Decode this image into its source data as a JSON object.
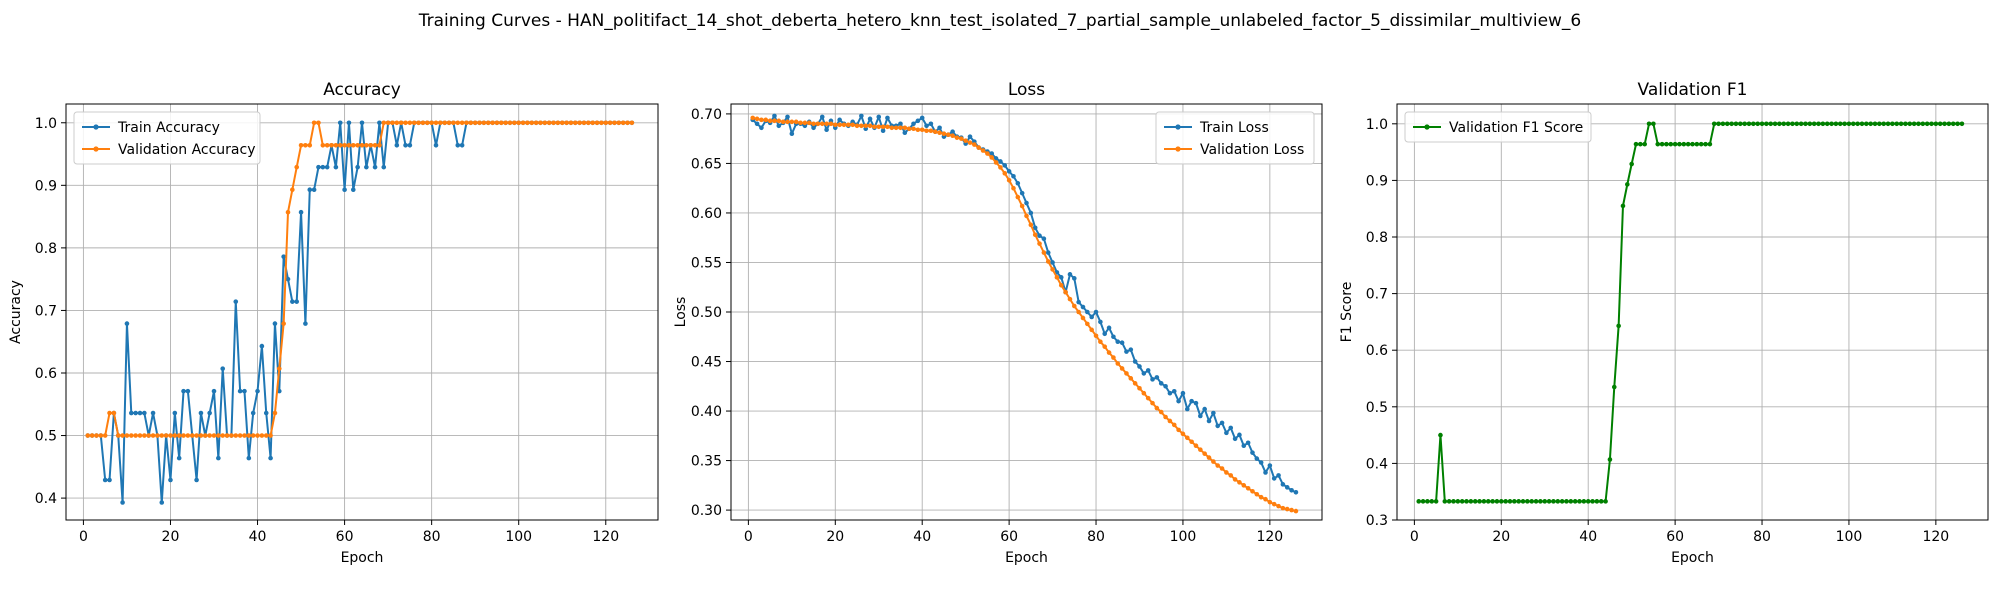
{
  "figure": {
    "suptitle": "Training Curves - HAN_politifact_14_shot_deberta_hetero_knn_test_isolated_7_partial_sample_unlabeled_factor_5_dissimilar_multiview_6"
  },
  "colors": {
    "blue": "#1f77b4",
    "orange": "#ff7f0e",
    "green": "#008000",
    "grid": "#b0b0b0"
  },
  "chart_data": [
    {
      "type": "line",
      "title": "Accuracy",
      "xlabel": "Epoch",
      "ylabel": "Accuracy",
      "xlim": [
        -4,
        132
      ],
      "ylim": [
        0.365,
        1.03
      ],
      "xticks": [
        0,
        20,
        40,
        60,
        80,
        100,
        120
      ],
      "yticks": [
        0.4,
        0.5,
        0.6,
        0.7,
        0.8,
        0.9,
        1.0
      ],
      "ytick_labels": [
        "0.4",
        "0.5",
        "0.6",
        "0.7",
        "0.8",
        "0.9",
        "1.0"
      ],
      "grid": true,
      "legend_position": "upper-left",
      "series": [
        {
          "name": "Train Accuracy",
          "color": "#1f77b4",
          "values": [
            0.5,
            0.5,
            0.5,
            0.5,
            0.429,
            0.429,
            0.536,
            0.5,
            0.393,
            0.679,
            0.536,
            0.536,
            0.536,
            0.536,
            0.5,
            0.536,
            0.5,
            0.393,
            0.5,
            0.429,
            0.536,
            0.464,
            0.571,
            0.571,
            0.5,
            0.429,
            0.536,
            0.5,
            0.536,
            0.571,
            0.464,
            0.607,
            0.5,
            0.5,
            0.714,
            0.571,
            0.571,
            0.464,
            0.536,
            0.571,
            0.643,
            0.536,
            0.464,
            0.679,
            0.571,
            0.786,
            0.75,
            0.714,
            0.714,
            0.857,
            0.679,
            0.893,
            0.893,
            0.929,
            0.929,
            0.929,
            0.964,
            0.929,
            1.0,
            0.893,
            1.0,
            0.893,
            0.929,
            1.0,
            0.929,
            0.964,
            0.929,
            1.0,
            0.929,
            1.0,
            1.0,
            0.964,
            1.0,
            0.964,
            0.964,
            1.0,
            1.0,
            1.0,
            1.0,
            1.0,
            0.964,
            1.0,
            1.0,
            1.0,
            1.0,
            0.964,
            0.964,
            1.0,
            1.0,
            1.0,
            1.0,
            1.0,
            1.0,
            1.0,
            1.0,
            1.0,
            1.0,
            1.0,
            1.0,
            1.0,
            1.0,
            1.0,
            1.0,
            1.0,
            1.0,
            1.0,
            1.0,
            1.0,
            1.0,
            1.0,
            1.0,
            1.0,
            1.0,
            1.0,
            1.0,
            1.0,
            1.0,
            1.0,
            1.0,
            1.0,
            1.0,
            1.0,
            1.0,
            1.0,
            1.0,
            1.0
          ]
        },
        {
          "name": "Validation Accuracy",
          "color": "#ff7f0e",
          "values": [
            0.5,
            0.5,
            0.5,
            0.5,
            0.5,
            0.536,
            0.536,
            0.5,
            0.5,
            0.5,
            0.5,
            0.5,
            0.5,
            0.5,
            0.5,
            0.5,
            0.5,
            0.5,
            0.5,
            0.5,
            0.5,
            0.5,
            0.5,
            0.5,
            0.5,
            0.5,
            0.5,
            0.5,
            0.5,
            0.5,
            0.5,
            0.5,
            0.5,
            0.5,
            0.5,
            0.5,
            0.5,
            0.5,
            0.5,
            0.5,
            0.5,
            0.5,
            0.5,
            0.536,
            0.607,
            0.679,
            0.857,
            0.893,
            0.929,
            0.964,
            0.964,
            0.964,
            1.0,
            1.0,
            0.964,
            0.964,
            0.964,
            0.964,
            0.964,
            0.964,
            0.964,
            0.964,
            0.964,
            0.964,
            0.964,
            0.964,
            0.964,
            0.964,
            1.0,
            1.0,
            1.0,
            1.0,
            1.0,
            1.0,
            1.0,
            1.0,
            1.0,
            1.0,
            1.0,
            1.0,
            1.0,
            1.0,
            1.0,
            1.0,
            1.0,
            1.0,
            1.0,
            1.0,
            1.0,
            1.0,
            1.0,
            1.0,
            1.0,
            1.0,
            1.0,
            1.0,
            1.0,
            1.0,
            1.0,
            1.0,
            1.0,
            1.0,
            1.0,
            1.0,
            1.0,
            1.0,
            1.0,
            1.0,
            1.0,
            1.0,
            1.0,
            1.0,
            1.0,
            1.0,
            1.0,
            1.0,
            1.0,
            1.0,
            1.0,
            1.0,
            1.0,
            1.0,
            1.0,
            1.0,
            1.0,
            1.0
          ]
        }
      ]
    },
    {
      "type": "line",
      "title": "Loss",
      "xlabel": "Epoch",
      "ylabel": "Loss",
      "xlim": [
        -4,
        132
      ],
      "ylim": [
        0.29,
        0.71
      ],
      "xticks": [
        0,
        20,
        40,
        60,
        80,
        100,
        120
      ],
      "yticks": [
        0.3,
        0.35,
        0.4,
        0.45,
        0.5,
        0.55,
        0.6,
        0.65,
        0.7
      ],
      "ytick_labels": [
        "0.30",
        "0.35",
        "0.40",
        "0.45",
        "0.50",
        "0.55",
        "0.60",
        "0.65",
        "0.70"
      ],
      "grid": true,
      "legend_position": "upper-right",
      "series": [
        {
          "name": "Train Loss",
          "color": "#1f77b4",
          "values": [
            0.694,
            0.69,
            0.686,
            0.693,
            0.691,
            0.698,
            0.688,
            0.691,
            0.697,
            0.68,
            0.69,
            0.69,
            0.688,
            0.692,
            0.686,
            0.69,
            0.697,
            0.684,
            0.693,
            0.686,
            0.694,
            0.69,
            0.688,
            0.692,
            0.689,
            0.698,
            0.685,
            0.695,
            0.686,
            0.697,
            0.683,
            0.696,
            0.688,
            0.688,
            0.69,
            0.681,
            0.685,
            0.69,
            0.693,
            0.696,
            0.688,
            0.69,
            0.682,
            0.686,
            0.677,
            0.679,
            0.682,
            0.677,
            0.676,
            0.67,
            0.677,
            0.672,
            0.666,
            0.664,
            0.662,
            0.66,
            0.655,
            0.652,
            0.648,
            0.642,
            0.637,
            0.63,
            0.62,
            0.61,
            0.6,
            0.585,
            0.577,
            0.574,
            0.56,
            0.55,
            0.54,
            0.535,
            0.52,
            0.538,
            0.534,
            0.51,
            0.505,
            0.5,
            0.495,
            0.5,
            0.49,
            0.478,
            0.484,
            0.475,
            0.47,
            0.469,
            0.46,
            0.462,
            0.45,
            0.445,
            0.438,
            0.441,
            0.432,
            0.434,
            0.428,
            0.425,
            0.418,
            0.42,
            0.41,
            0.418,
            0.402,
            0.41,
            0.408,
            0.395,
            0.402,
            0.39,
            0.398,
            0.385,
            0.388,
            0.378,
            0.383,
            0.372,
            0.376,
            0.365,
            0.368,
            0.358,
            0.352,
            0.348,
            0.338,
            0.345,
            0.332,
            0.335,
            0.326,
            0.323,
            0.32,
            0.318
          ]
        },
        {
          "name": "Validation Loss",
          "color": "#ff7f0e",
          "values": [
            0.696,
            0.695,
            0.694,
            0.694,
            0.693,
            0.693,
            0.693,
            0.692,
            0.692,
            0.692,
            0.692,
            0.691,
            0.691,
            0.691,
            0.69,
            0.69,
            0.69,
            0.69,
            0.69,
            0.689,
            0.689,
            0.689,
            0.689,
            0.689,
            0.688,
            0.688,
            0.688,
            0.688,
            0.687,
            0.687,
            0.687,
            0.687,
            0.686,
            0.686,
            0.686,
            0.686,
            0.685,
            0.685,
            0.684,
            0.684,
            0.683,
            0.683,
            0.682,
            0.681,
            0.68,
            0.679,
            0.678,
            0.676,
            0.675,
            0.673,
            0.671,
            0.669,
            0.666,
            0.663,
            0.66,
            0.656,
            0.651,
            0.646,
            0.64,
            0.633,
            0.625,
            0.616,
            0.607,
            0.597,
            0.588,
            0.578,
            0.569,
            0.56,
            0.551,
            0.543,
            0.535,
            0.527,
            0.52,
            0.513,
            0.506,
            0.5,
            0.494,
            0.488,
            0.482,
            0.476,
            0.47,
            0.465,
            0.459,
            0.454,
            0.448,
            0.443,
            0.438,
            0.433,
            0.428,
            0.423,
            0.418,
            0.413,
            0.408,
            0.403,
            0.399,
            0.394,
            0.39,
            0.386,
            0.381,
            0.377,
            0.373,
            0.369,
            0.365,
            0.361,
            0.357,
            0.353,
            0.349,
            0.345,
            0.342,
            0.338,
            0.335,
            0.331,
            0.328,
            0.325,
            0.322,
            0.319,
            0.316,
            0.313,
            0.311,
            0.308,
            0.306,
            0.304,
            0.302,
            0.301,
            0.3,
            0.299
          ]
        }
      ]
    },
    {
      "type": "line",
      "title": "Validation F1",
      "xlabel": "Epoch",
      "ylabel": "F1 Score",
      "xlim": [
        -4,
        132
      ],
      "ylim": [
        0.3,
        1.035
      ],
      "xticks": [
        0,
        20,
        40,
        60,
        80,
        100,
        120
      ],
      "yticks": [
        0.3,
        0.4,
        0.5,
        0.6,
        0.7,
        0.8,
        0.9,
        1.0
      ],
      "ytick_labels": [
        "0.3",
        "0.4",
        "0.5",
        "0.6",
        "0.7",
        "0.8",
        "0.9",
        "1.0"
      ],
      "grid": true,
      "legend_position": "upper-left",
      "series": [
        {
          "name": "Validation F1 Score",
          "color": "#008000",
          "values": [
            0.333,
            0.333,
            0.333,
            0.333,
            0.333,
            0.45,
            0.333,
            0.333,
            0.333,
            0.333,
            0.333,
            0.333,
            0.333,
            0.333,
            0.333,
            0.333,
            0.333,
            0.333,
            0.333,
            0.333,
            0.333,
            0.333,
            0.333,
            0.333,
            0.333,
            0.333,
            0.333,
            0.333,
            0.333,
            0.333,
            0.333,
            0.333,
            0.333,
            0.333,
            0.333,
            0.333,
            0.333,
            0.333,
            0.333,
            0.333,
            0.333,
            0.333,
            0.333,
            0.333,
            0.407,
            0.535,
            0.643,
            0.855,
            0.893,
            0.929,
            0.964,
            0.964,
            0.964,
            1.0,
            1.0,
            0.964,
            0.964,
            0.964,
            0.964,
            0.964,
            0.964,
            0.964,
            0.964,
            0.964,
            0.964,
            0.964,
            0.964,
            0.964,
            1.0,
            1.0,
            1.0,
            1.0,
            1.0,
            1.0,
            1.0,
            1.0,
            1.0,
            1.0,
            1.0,
            1.0,
            1.0,
            1.0,
            1.0,
            1.0,
            1.0,
            1.0,
            1.0,
            1.0,
            1.0,
            1.0,
            1.0,
            1.0,
            1.0,
            1.0,
            1.0,
            1.0,
            1.0,
            1.0,
            1.0,
            1.0,
            1.0,
            1.0,
            1.0,
            1.0,
            1.0,
            1.0,
            1.0,
            1.0,
            1.0,
            1.0,
            1.0,
            1.0,
            1.0,
            1.0,
            1.0,
            1.0,
            1.0,
            1.0,
            1.0,
            1.0,
            1.0,
            1.0,
            1.0,
            1.0,
            1.0,
            1.0
          ]
        }
      ]
    }
  ]
}
